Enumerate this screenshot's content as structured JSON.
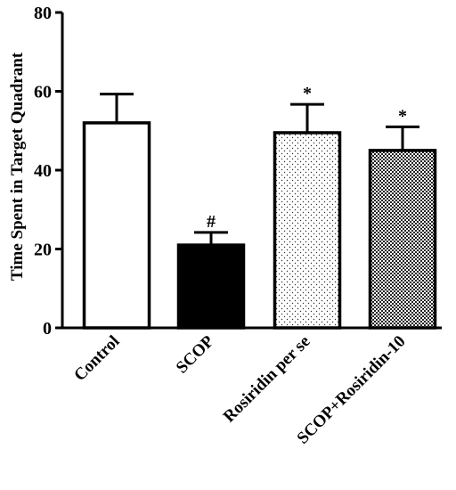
{
  "chart_data": {
    "type": "bar",
    "ylabel": "Time Spent in Target Quadrant",
    "xlabel": "",
    "ylim": [
      0,
      80
    ],
    "yticks": [
      "0",
      "20",
      "40",
      "60",
      "80"
    ],
    "categories": [
      "Control",
      "SCOP",
      "Rosiridin per se",
      "SCOP+Rosiridin-10"
    ],
    "values": [
      52,
      21,
      49.5,
      45
    ],
    "errors": [
      7.3,
      3.2,
      7.2,
      6
    ],
    "annotations": [
      "",
      "#",
      "*",
      "*"
    ],
    "fills": [
      "white",
      "black",
      "sparse-dots",
      "dense-checker"
    ]
  }
}
